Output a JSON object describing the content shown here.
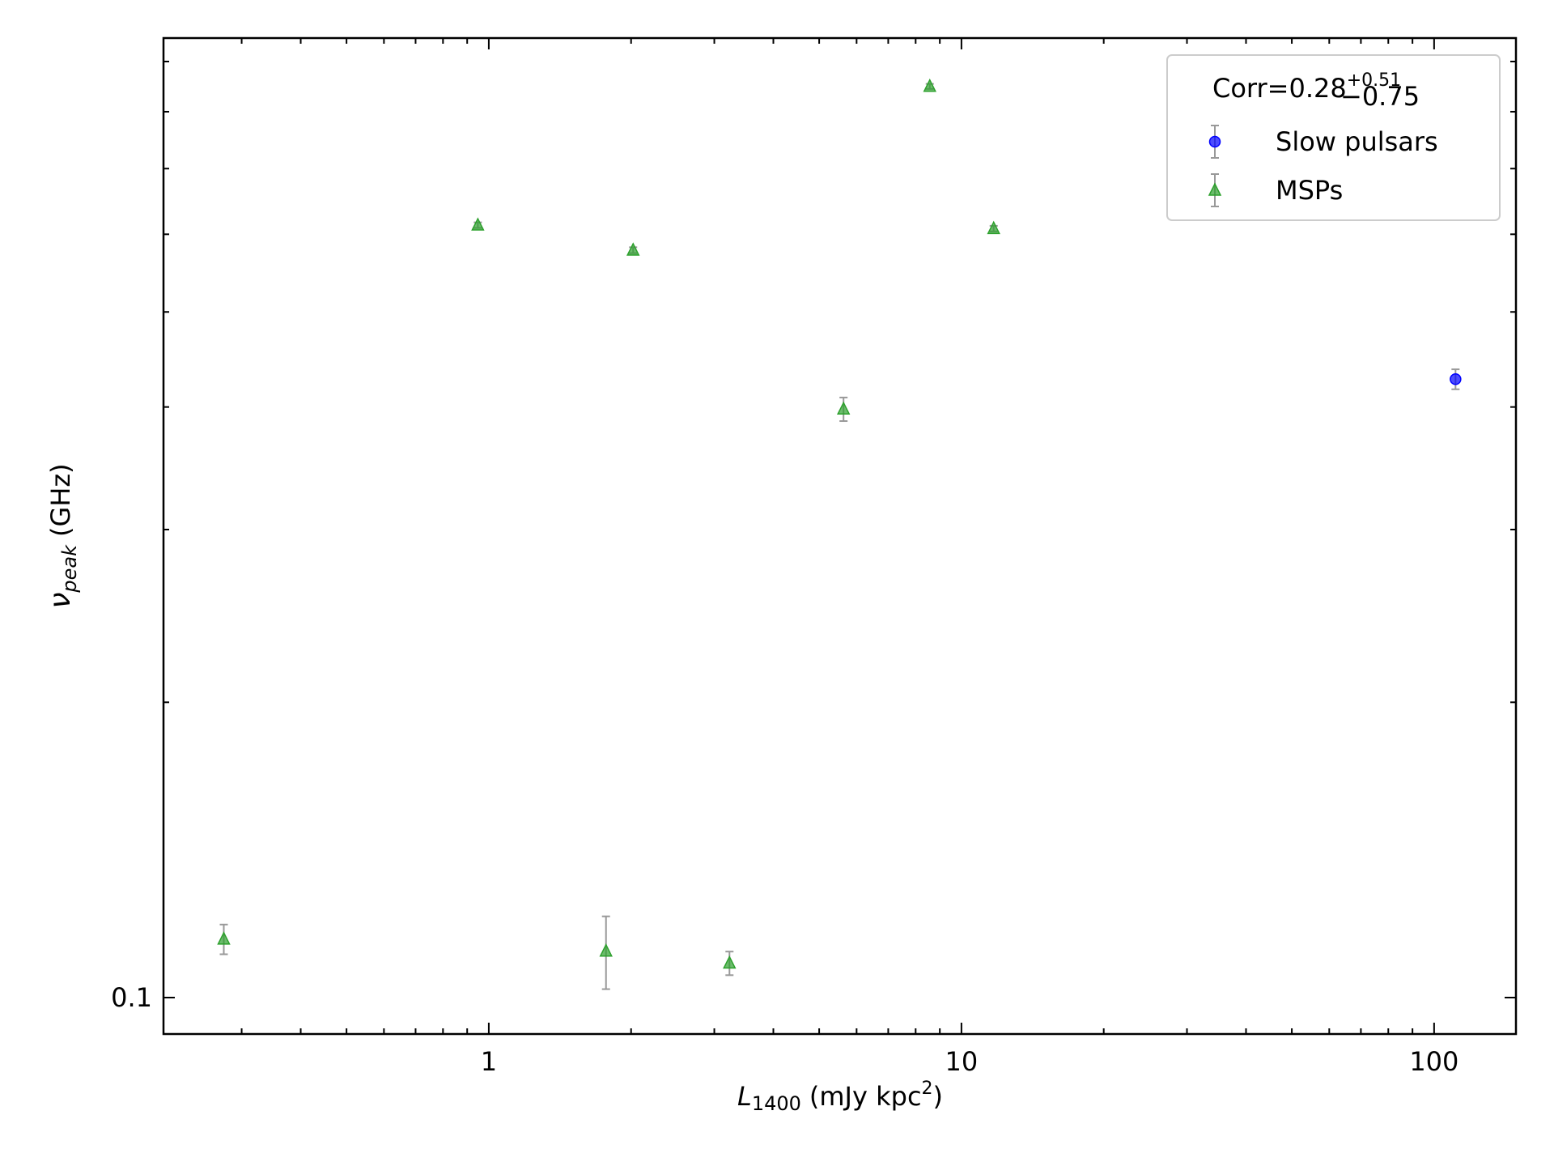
{
  "chart_data": {
    "type": "scatter",
    "x_label": {
      "symbol": "L",
      "subscript": "1400",
      "unit_start": "(mJy kpc",
      "superscript": "2",
      "unit_end": ")"
    },
    "y_label": {
      "symbol": "ν",
      "subscript": "peak",
      "unit": "(GHz)"
    },
    "xscale": "log",
    "yscale": "log",
    "xlim": [
      0.205,
      149
    ],
    "ylim": [
      0.0918,
      0.951
    ],
    "xticks": [
      1,
      10,
      100
    ],
    "xminorticks": [
      0.3,
      0.4,
      0.5,
      0.6,
      0.7,
      0.8,
      0.9,
      2,
      3,
      4,
      5,
      6,
      7,
      8,
      9,
      20,
      30,
      40,
      50,
      60,
      70,
      80,
      90
    ],
    "yticks": [
      0.1
    ],
    "yminorticks": [
      0.2,
      0.3,
      0.4,
      0.5,
      0.6,
      0.7,
      0.8,
      0.9
    ],
    "grid": false,
    "legend_position": "upper-right",
    "legend_title": {
      "text": "Corr=0.28",
      "upper": "+0.51",
      "lower": "−0.75"
    },
    "errorbar_color": "#999999",
    "series": [
      {
        "name": "Slow pulsars",
        "color": "#0000ff",
        "marker": "circle",
        "x": [
          111
        ],
        "values": [
          0.427
        ],
        "errors": [
          0.01
        ]
      },
      {
        "name": "MSPs",
        "color": "#2ca02c",
        "marker": "triangle",
        "x": [
          0.275,
          0.948,
          2.02,
          1.77,
          3.23,
          5.63,
          8.57,
          11.7
        ],
        "values": [
          0.1147,
          0.613,
          0.578,
          0.1115,
          0.1084,
          0.398,
          0.849,
          0.608
        ],
        "errors": [
          0.004,
          0.004,
          0.004,
          0.0095,
          0.003,
          0.011,
          0.005,
          0.004
        ]
      }
    ]
  }
}
